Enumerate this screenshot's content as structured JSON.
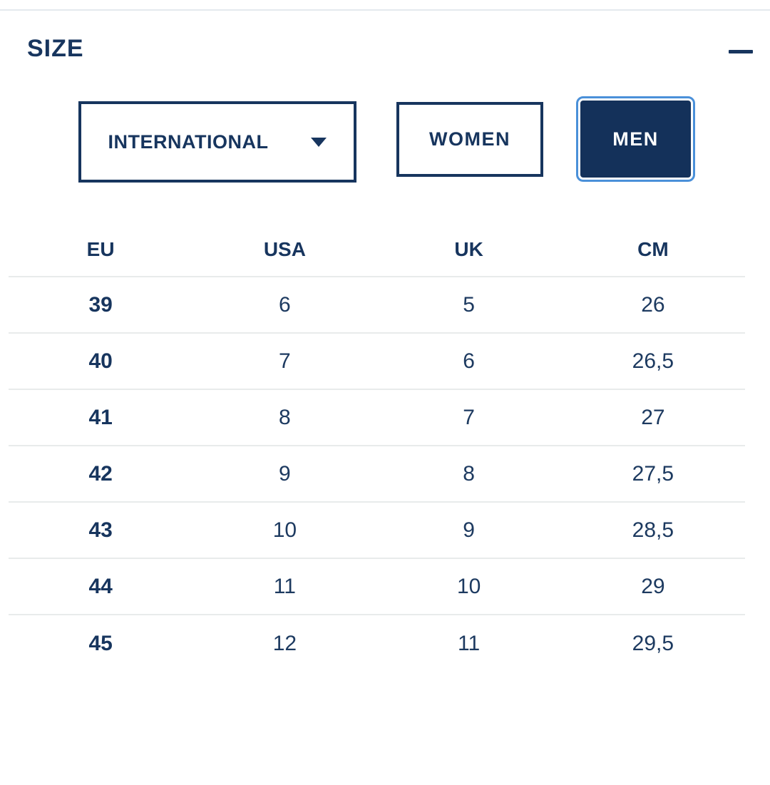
{
  "section": {
    "title": "SIZE",
    "collapse_icon": "minus"
  },
  "controls": {
    "region_dropdown": {
      "value": "INTERNATIONAL"
    },
    "gender_toggle": {
      "women": {
        "label": "WOMEN",
        "selected": false
      },
      "men": {
        "label": "MEN",
        "selected": true
      }
    }
  },
  "table": {
    "columns": [
      "EU",
      "USA",
      "UK",
      "CM"
    ],
    "rows": [
      [
        "39",
        "6",
        "5",
        "26"
      ],
      [
        "40",
        "7",
        "6",
        "26,5"
      ],
      [
        "41",
        "8",
        "7",
        "27"
      ],
      [
        "42",
        "9",
        "8",
        "27,5"
      ],
      [
        "43",
        "10",
        "9",
        "28,5"
      ],
      [
        "44",
        "11",
        "10",
        "29"
      ],
      [
        "45",
        "12",
        "11",
        "29,5"
      ]
    ]
  },
  "colors": {
    "navy": "#17355e",
    "selected_fill": "#14315a",
    "selected_ring": "#4a90d9",
    "separator": "#e8ebeb",
    "top_divider": "#e4e9ee"
  }
}
